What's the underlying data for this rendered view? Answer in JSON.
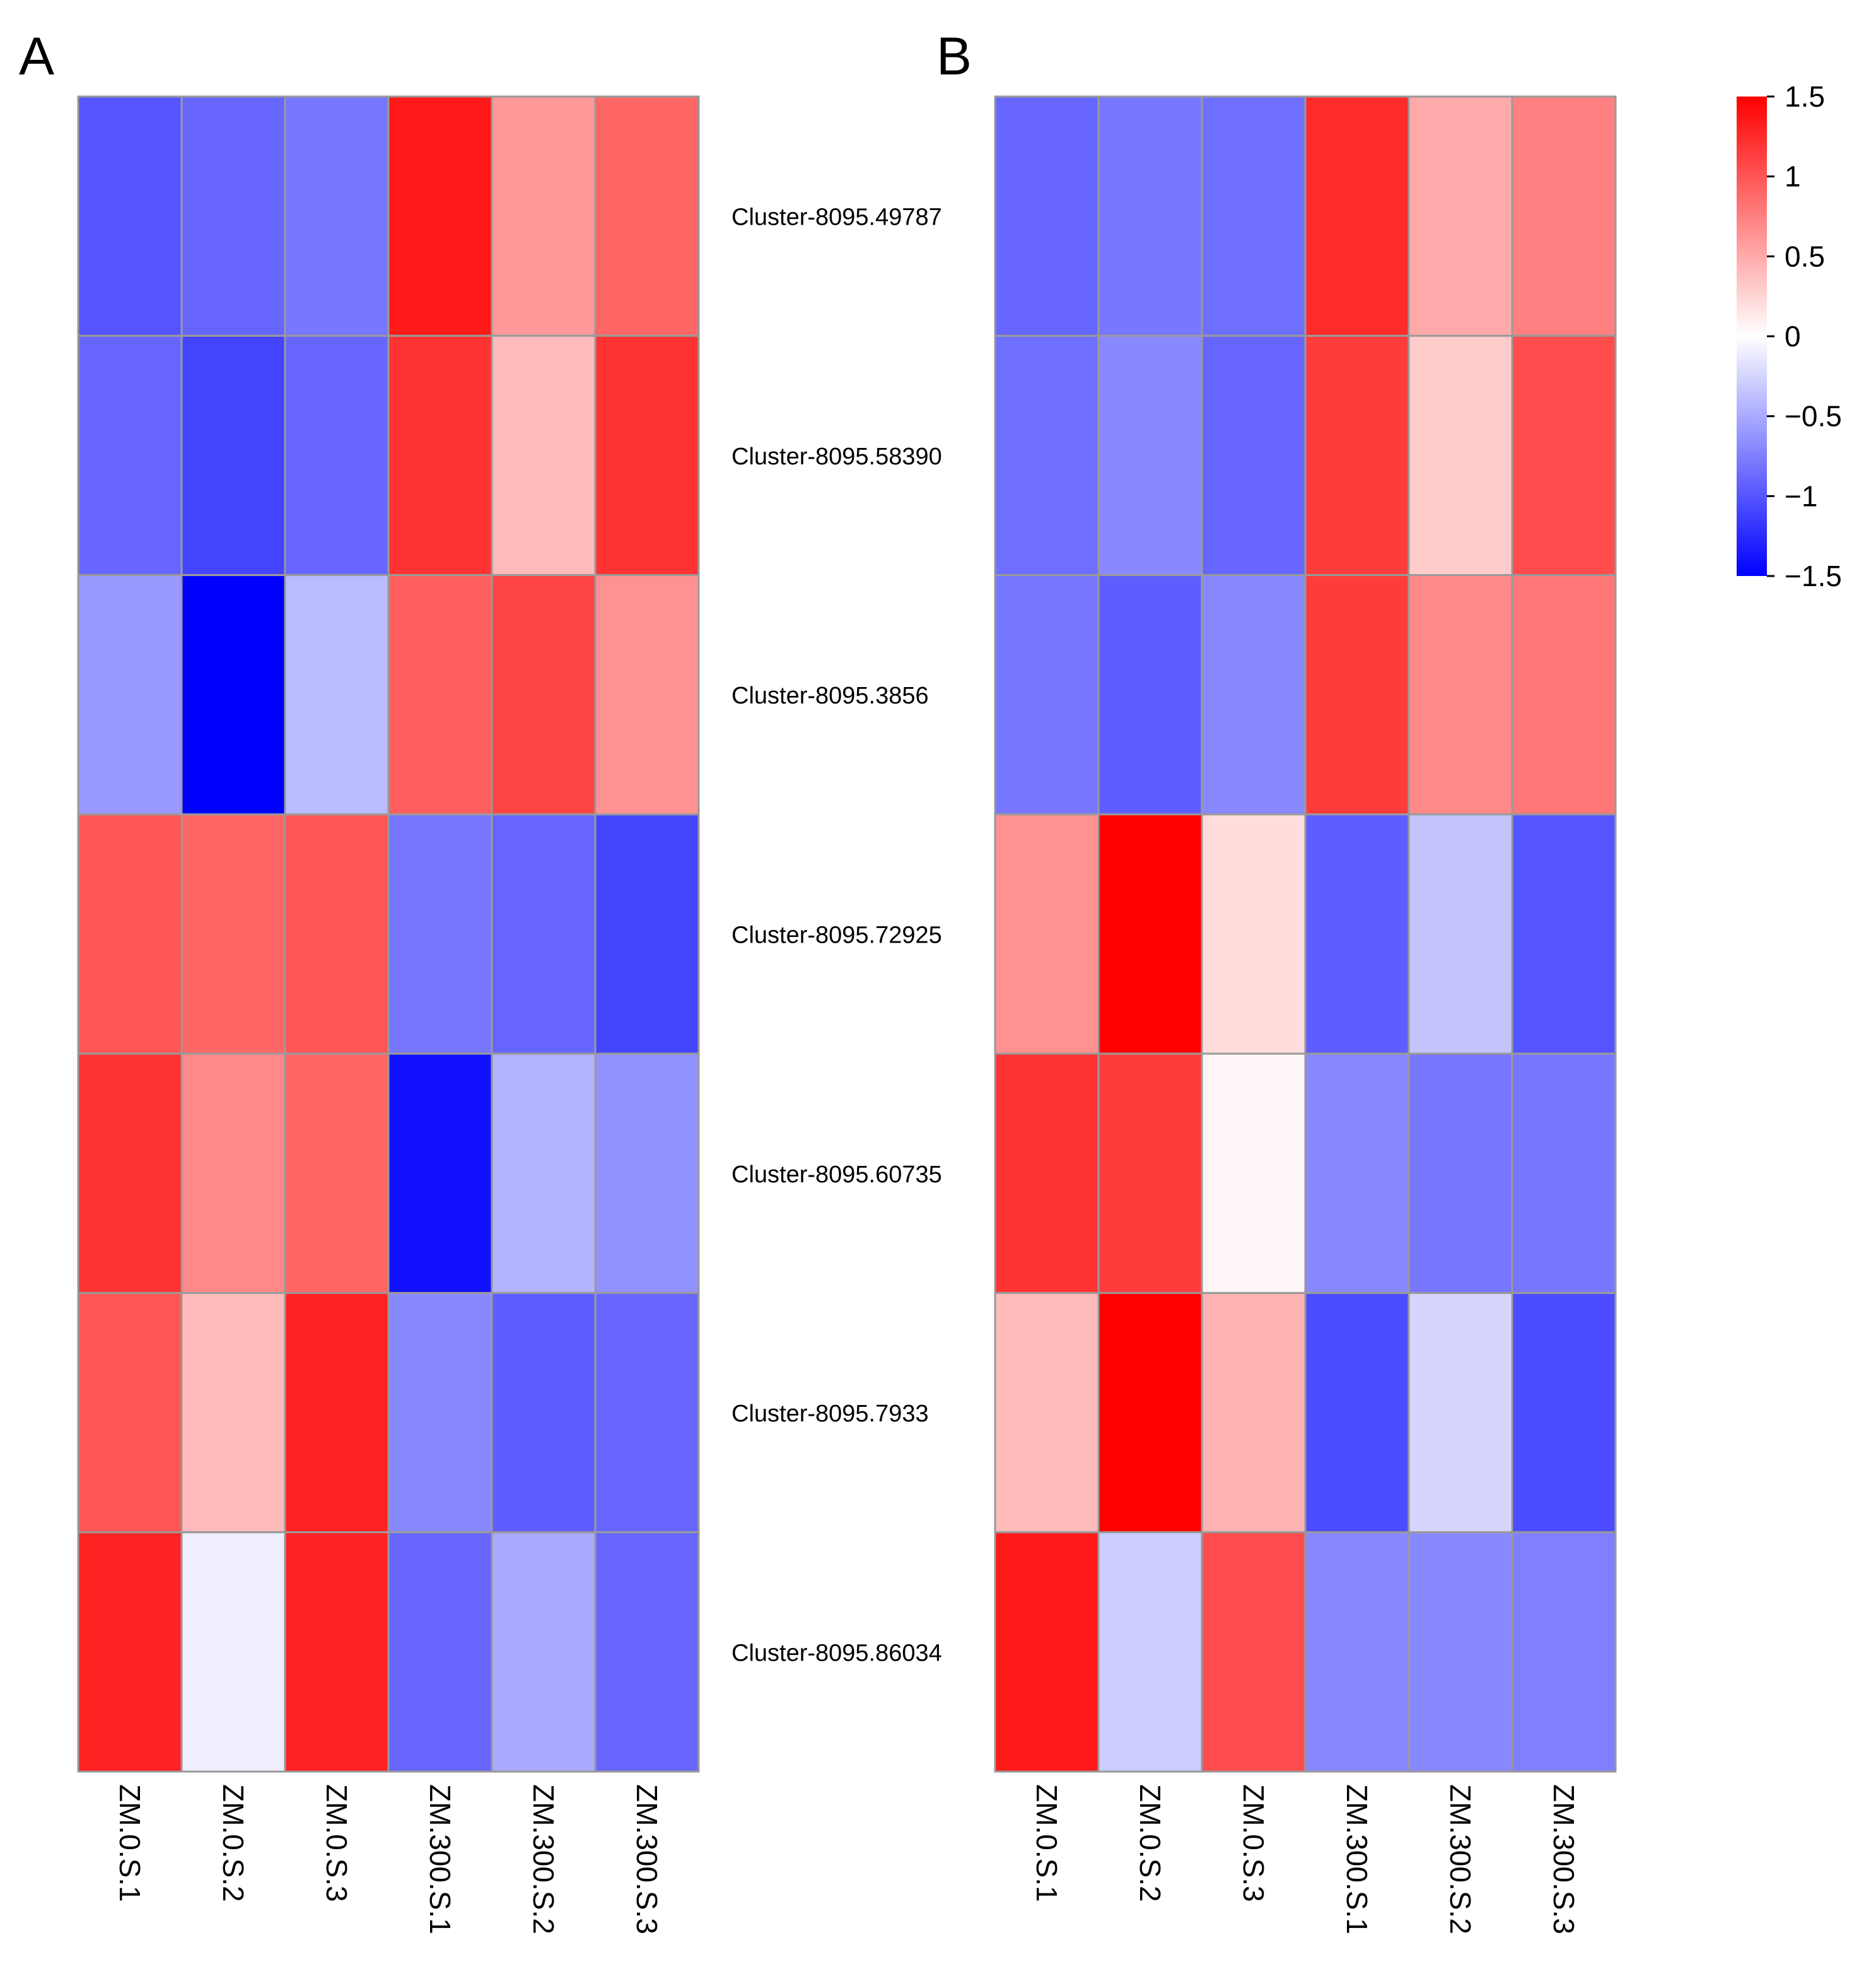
{
  "chart_data": [
    {
      "type": "heatmap",
      "panel": "A",
      "rows": [
        "Cluster-8095.49787",
        "Cluster-8095.58390",
        "Cluster-8095.3856",
        "Cluster-8095.72925",
        "Cluster-8095.60735",
        "Cluster-8095.7933",
        "Cluster-8095.86034"
      ],
      "columns": [
        "ZM.0.S.1",
        "ZM.0.S.2",
        "ZM.0.S.3",
        "ZM.300.S.1",
        "ZM.300.S.2",
        "ZM.300.S.3"
      ],
      "values": [
        [
          -1.0,
          -0.9,
          -0.8,
          1.35,
          0.6,
          0.9
        ],
        [
          -0.9,
          -1.1,
          -0.9,
          1.2,
          0.4,
          1.2
        ],
        [
          -0.6,
          -1.5,
          -0.4,
          0.95,
          1.1,
          0.65
        ],
        [
          1.0,
          0.9,
          1.0,
          -0.8,
          -0.9,
          -1.1
        ],
        [
          1.2,
          0.7,
          0.9,
          -1.4,
          -0.45,
          -0.65
        ],
        [
          1.0,
          0.4,
          1.3,
          -0.7,
          -0.95,
          -0.9
        ],
        [
          1.3,
          -0.1,
          1.3,
          -0.9,
          -0.5,
          -0.9
        ]
      ],
      "colorbar": {
        "min": -1.5,
        "max": 1.5
      }
    },
    {
      "type": "heatmap",
      "panel": "B",
      "rows": [
        "Cluster-8095.49787",
        "Cluster-8095.58390",
        "Cluster-8095.3856",
        "Cluster-8095.72925",
        "Cluster-8095.60735",
        "Cluster-8095.7933",
        "Cluster-8095.86034"
      ],
      "columns": [
        "ZM.0.S.1",
        "ZM.0.S.2",
        "ZM.0.S.3",
        "ZM.300.S.1",
        "ZM.300.S.2",
        "ZM.300.S.3"
      ],
      "values": [
        [
          -0.9,
          -0.8,
          -0.85,
          1.25,
          0.5,
          0.75
        ],
        [
          -0.85,
          -0.7,
          -0.9,
          1.15,
          0.3,
          1.05
        ],
        [
          -0.8,
          -0.95,
          -0.7,
          1.15,
          0.7,
          0.8
        ],
        [
          0.65,
          1.5,
          0.2,
          -0.95,
          -0.35,
          -1.0
        ],
        [
          1.2,
          1.15,
          0.05,
          -0.7,
          -0.8,
          -0.8
        ],
        [
          0.4,
          1.5,
          0.45,
          -1.05,
          -0.25,
          -1.05
        ],
        [
          1.35,
          -0.3,
          1.05,
          -0.7,
          -0.7,
          -0.75
        ]
      ],
      "colorbar": {
        "min": -1.5,
        "max": 1.5
      }
    }
  ],
  "panels": [
    {
      "letter": "A"
    },
    {
      "letter": "B"
    }
  ],
  "legend": {
    "ticks": [
      "1.5",
      "1",
      "0.5",
      "0",
      "−0.5",
      "−1",
      "−1.5"
    ],
    "tick_values": [
      1.5,
      1,
      0.5,
      0,
      -0.5,
      -1,
      -1.5
    ],
    "colors": {
      "high": "#ff0000",
      "mid": "#ffffff",
      "low": "#0000ff"
    }
  }
}
